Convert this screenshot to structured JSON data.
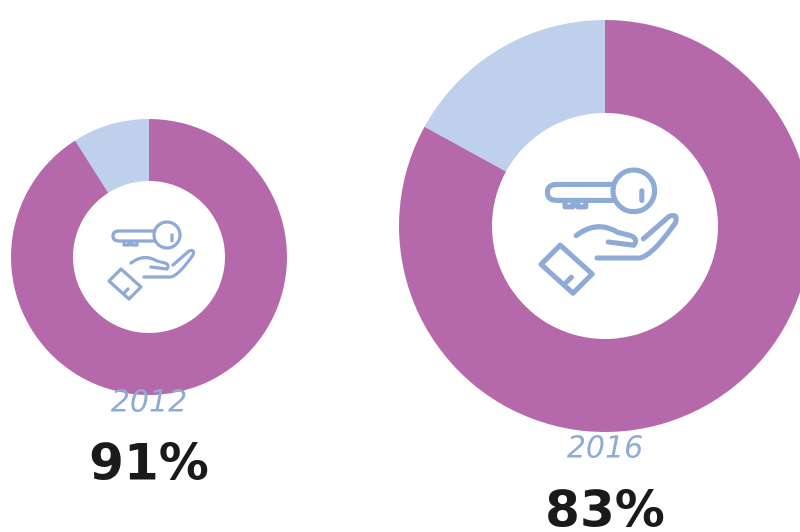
{
  "chart_data": [
    {
      "type": "pie",
      "title": "2012",
      "values": [
        91,
        9
      ],
      "value_labels": [
        "91%",
        null
      ],
      "colors": [
        "#b569ab",
        "#bed0ec"
      ]
    },
    {
      "type": "pie",
      "title": "2016",
      "values": [
        83,
        17
      ],
      "value_labels": [
        "83%",
        null
      ],
      "colors": [
        "#b569ab",
        "#bed0ec"
      ]
    }
  ]
}
